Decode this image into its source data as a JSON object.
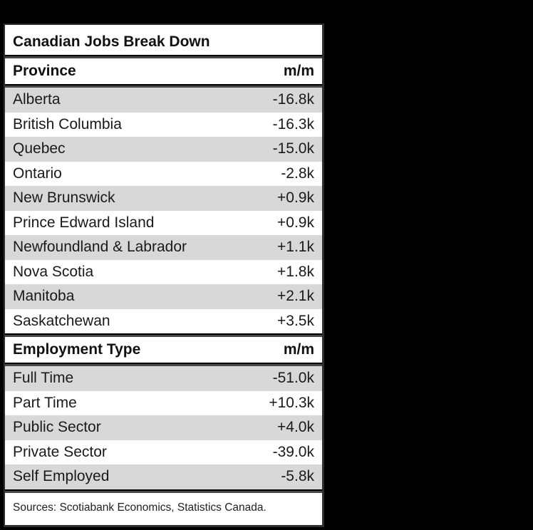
{
  "colors": {
    "page_background": "#000000",
    "card_background": "#ffffff",
    "row_stripe": "#d8d8d8",
    "rule": "#474747",
    "text": "#1a1a1a"
  },
  "chart_data": {
    "type": "table",
    "title": "Canadian Jobs Break Down",
    "sections": [
      {
        "header": {
          "label": "Province",
          "value": "m/m"
        },
        "rows": [
          {
            "label": "Alberta",
            "value": "-16.8k"
          },
          {
            "label": "British Columbia",
            "value": "-16.3k"
          },
          {
            "label": "Quebec",
            "value": "-15.0k"
          },
          {
            "label": "Ontario",
            "value": "-2.8k"
          },
          {
            "label": "New Brunswick",
            "value": "+0.9k"
          },
          {
            "label": "Prince Edward Island",
            "value": "+0.9k"
          },
          {
            "label": "Newfoundland & Labrador",
            "value": "+1.1k"
          },
          {
            "label": "Nova Scotia",
            "value": "+1.8k"
          },
          {
            "label": "Manitoba",
            "value": "+2.1k"
          },
          {
            "label": "Saskatchewan",
            "value": "+3.5k"
          }
        ]
      },
      {
        "header": {
          "label": "Employment Type",
          "value": "m/m"
        },
        "rows": [
          {
            "label": "Full Time",
            "value": "-51.0k"
          },
          {
            "label": "Part Time",
            "value": "+10.3k"
          },
          {
            "label": "Public Sector",
            "value": "+4.0k"
          },
          {
            "label": "Private Sector",
            "value": "-39.0k"
          },
          {
            "label": "Self Employed",
            "value": "-5.8k"
          }
        ]
      }
    ],
    "source_note": "Sources: Scotiabank Economics, Statistics Canada."
  }
}
